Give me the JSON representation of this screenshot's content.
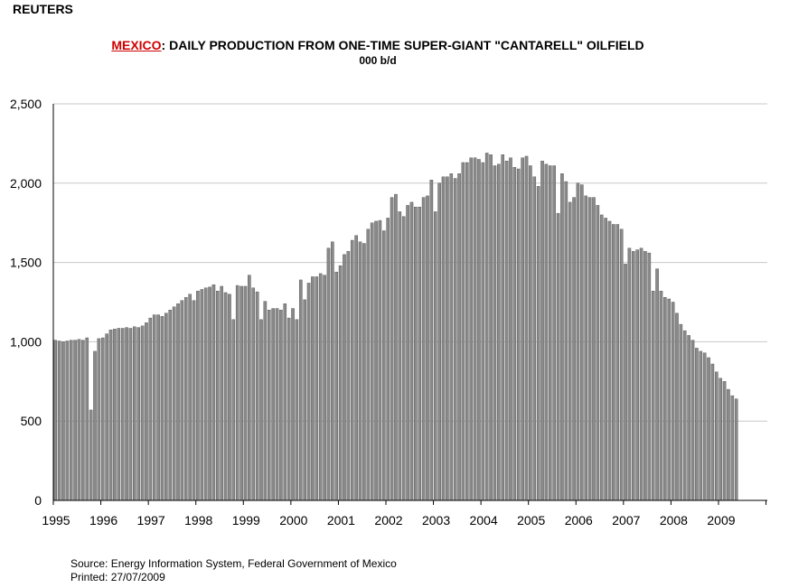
{
  "header": {
    "brand": "REUTERS",
    "country": "MEXICO",
    "title_rest": ":  DAILY PRODUCTION FROM ONE-TIME SUPER-GIANT \"CANTARELL\" OILFIELD",
    "unit": "000 b/d"
  },
  "footer": {
    "source": "Source:  Energy Information System, Federal Government of Mexico",
    "printed": "Printed:  27/07/2009"
  },
  "colors": {
    "bar": "#8a8a8a",
    "bar_edge": "#4a4a4a",
    "grid": "#c8c8c8",
    "country": "#d00000"
  },
  "chart_data": {
    "type": "bar",
    "x_start": "1995-01",
    "x_end": "2009-05",
    "frequency": "monthly",
    "ylim": [
      0,
      2500
    ],
    "yticks": [
      0,
      500,
      1000,
      1500,
      2000,
      2500
    ],
    "ytick_labels": [
      "0",
      "500",
      "1,000",
      "1,500",
      "2,000",
      "2,500"
    ],
    "xtick_labels": [
      "1995",
      "1996",
      "1997",
      "1998",
      "1999",
      "2000",
      "2001",
      "2002",
      "2003",
      "2004",
      "2005",
      "2006",
      "2007",
      "2008",
      "2009"
    ],
    "grid": true,
    "values": [
      1010,
      1005,
      1000,
      1005,
      1010,
      1010,
      1015,
      1010,
      1025,
      570,
      940,
      1020,
      1025,
      1050,
      1075,
      1080,
      1085,
      1085,
      1090,
      1085,
      1095,
      1090,
      1100,
      1120,
      1150,
      1170,
      1170,
      1160,
      1180,
      1200,
      1220,
      1240,
      1260,
      1280,
      1300,
      1260,
      1320,
      1330,
      1340,
      1345,
      1360,
      1320,
      1350,
      1310,
      1300,
      1140,
      1355,
      1350,
      1350,
      1420,
      1340,
      1315,
      1140,
      1255,
      1200,
      1210,
      1210,
      1200,
      1240,
      1150,
      1210,
      1140,
      1390,
      1265,
      1370,
      1410,
      1410,
      1430,
      1420,
      1590,
      1630,
      1440,
      1480,
      1550,
      1570,
      1640,
      1670,
      1630,
      1620,
      1710,
      1750,
      1760,
      1765,
      1700,
      1780,
      1910,
      1930,
      1820,
      1790,
      1860,
      1880,
      1850,
      1850,
      1910,
      1920,
      2020,
      1820,
      2000,
      2040,
      2040,
      2060,
      2030,
      2060,
      2130,
      2130,
      2160,
      2160,
      2150,
      2130,
      2190,
      2180,
      2110,
      2120,
      2180,
      2140,
      2160,
      2100,
      2090,
      2160,
      2170,
      2110,
      2040,
      1980,
      2140,
      2120,
      2110,
      2110,
      1810,
      2060,
      2010,
      1880,
      1910,
      2000,
      1990,
      1920,
      1910,
      1910,
      1860,
      1800,
      1780,
      1760,
      1740,
      1740,
      1710,
      1490,
      1590,
      1570,
      1580,
      1590,
      1570,
      1560,
      1320,
      1460,
      1320,
      1280,
      1270,
      1250,
      1180,
      1110,
      1070,
      1040,
      1010,
      960,
      940,
      930,
      900,
      860,
      810,
      770,
      750,
      700,
      660,
      640
    ]
  }
}
